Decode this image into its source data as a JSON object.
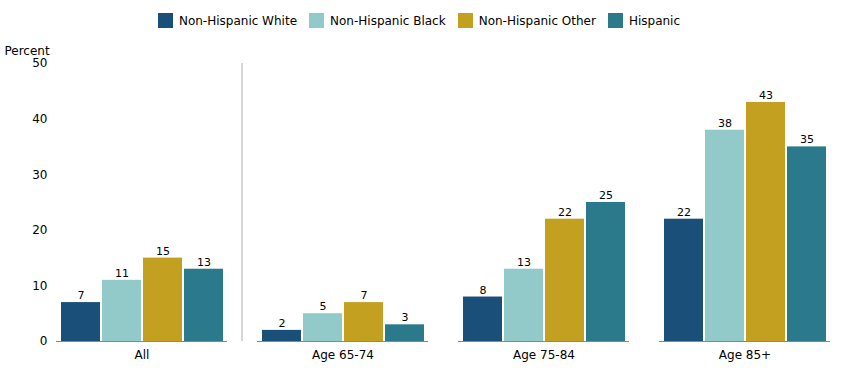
{
  "chart_data": {
    "type": "bar",
    "categories": [
      "All",
      "Age 65-74",
      "Age 75-84",
      "Age 85+"
    ],
    "series": [
      {
        "name": "Non-Hispanic White",
        "color": "#1a4f7a",
        "values": [
          7,
          2,
          8,
          22
        ]
      },
      {
        "name": "Non-Hispanic Black",
        "color": "#92caca",
        "values": [
          11,
          5,
          13,
          38
        ]
      },
      {
        "name": "Non-Hispanic Other",
        "color": "#c4a020",
        "values": [
          15,
          7,
          22,
          43
        ]
      },
      {
        "name": "Hispanic",
        "color": "#2a7a8c",
        "values": [
          13,
          3,
          25,
          35
        ]
      }
    ],
    "ylabel": "Percent",
    "ylim": [
      0,
      50
    ],
    "yticks": [
      0,
      10,
      20,
      30,
      40,
      50
    ],
    "grid": false,
    "legend": "top",
    "data_labels": true
  }
}
